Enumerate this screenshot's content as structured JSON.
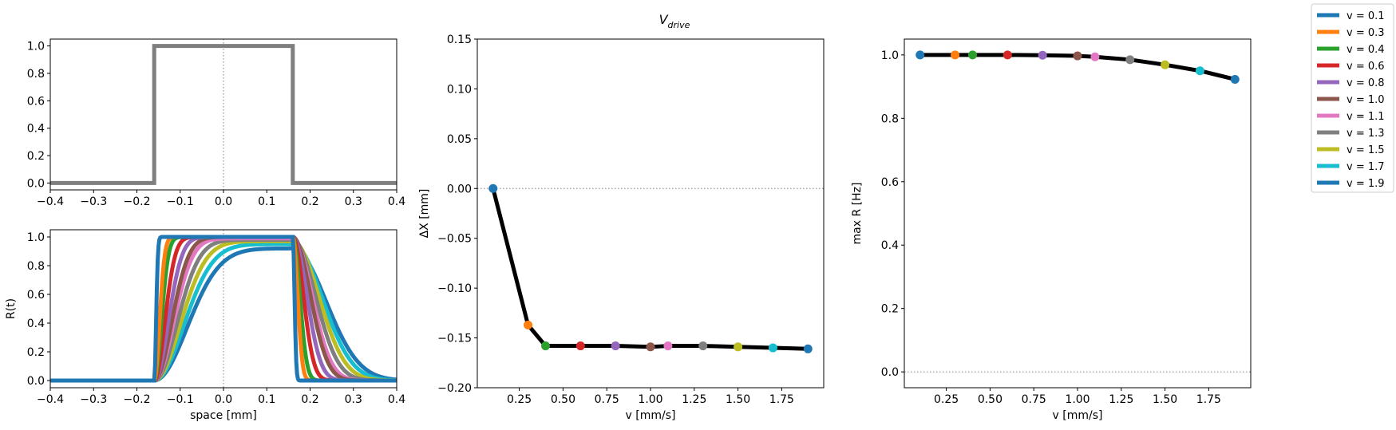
{
  "figure": {
    "suptitle_main": "V",
    "suptitle_sub": "drive"
  },
  "chart_data": [
    {
      "id": "stimulus",
      "type": "line",
      "title": "",
      "xlabel": "",
      "ylabel": "",
      "xlim": [
        -0.4,
        0.4
      ],
      "ylim": [
        -0.05,
        1.05
      ],
      "xticks": [
        -0.4,
        -0.3,
        -0.2,
        -0.1,
        0.0,
        0.1,
        0.2,
        0.3,
        0.4
      ],
      "xtick_labels": [
        "−0.4",
        "−0.3",
        "−0.2",
        "−0.1",
        "0.0",
        "0.1",
        "0.2",
        "0.3",
        "0.4"
      ],
      "yticks": [
        0.0,
        0.2,
        0.4,
        0.6,
        0.8,
        1.0
      ],
      "ytick_labels": [
        "0.0",
        "0.2",
        "0.4",
        "0.6",
        "0.8",
        "1.0"
      ],
      "reference_lines": [
        {
          "orientation": "vertical",
          "value": 0.0,
          "style": "dotted"
        }
      ],
      "series": [
        {
          "color": "#7f7f7f",
          "x": [
            -0.4,
            -0.16,
            -0.16,
            0.16,
            0.16,
            0.4
          ],
          "y": [
            0,
            0,
            1,
            1,
            0,
            0
          ]
        }
      ]
    },
    {
      "id": "responses",
      "type": "line",
      "title": "",
      "xlabel": "space [mm]",
      "ylabel": "R(t)",
      "xlim": [
        -0.4,
        0.4
      ],
      "ylim": [
        -0.05,
        1.05
      ],
      "xticks": [
        -0.4,
        -0.3,
        -0.2,
        -0.1,
        0.0,
        0.1,
        0.2,
        0.3,
        0.4
      ],
      "xtick_labels": [
        "−0.4",
        "−0.3",
        "−0.2",
        "−0.1",
        "0.0",
        "0.1",
        "0.2",
        "0.3",
        "0.4"
      ],
      "yticks": [
        0.0,
        0.2,
        0.4,
        0.6,
        0.8,
        1.0
      ],
      "ytick_labels": [
        "0.0",
        "0.2",
        "0.4",
        "0.6",
        "0.8",
        "1.0"
      ],
      "reference_lines": [
        {
          "orientation": "vertical",
          "value": 0.0,
          "style": "dotted"
        }
      ],
      "series": [
        {
          "v": 0.1,
          "color": "#1f77b4",
          "rise_tau": 0.006,
          "peak": 1.0,
          "decay_tau": 0.004
        },
        {
          "v": 0.3,
          "color": "#ff7f0e",
          "rise_tau": 0.017,
          "peak": 1.0,
          "decay_tau": 0.011
        },
        {
          "v": 0.4,
          "color": "#2ca02c",
          "rise_tau": 0.023,
          "peak": 1.0,
          "decay_tau": 0.016
        },
        {
          "v": 0.6,
          "color": "#d62728",
          "rise_tau": 0.034,
          "peak": 1.0,
          "decay_tau": 0.024
        },
        {
          "v": 0.8,
          "color": "#9467bd",
          "rise_tau": 0.045,
          "peak": 1.0,
          "decay_tau": 0.032
        },
        {
          "v": 1.0,
          "color": "#8c564b",
          "rise_tau": 0.056,
          "peak": 1.0,
          "decay_tau": 0.04
        },
        {
          "v": 1.1,
          "color": "#e377c2",
          "rise_tau": 0.062,
          "peak": 0.99,
          "decay_tau": 0.044
        },
        {
          "v": 1.3,
          "color": "#7f7f7f",
          "rise_tau": 0.073,
          "peak": 0.98,
          "decay_tau": 0.052
        },
        {
          "v": 1.5,
          "color": "#bcbd22",
          "rise_tau": 0.084,
          "peak": 0.97,
          "decay_tau": 0.06
        },
        {
          "v": 1.7,
          "color": "#17becf",
          "rise_tau": 0.095,
          "peak": 0.95,
          "decay_tau": 0.068
        },
        {
          "v": 1.9,
          "color": "#1f77b4",
          "rise_tau": 0.106,
          "peak": 0.92,
          "decay_tau": 0.076
        }
      ]
    },
    {
      "id": "delta-x",
      "type": "line",
      "title": "",
      "xlabel": "v [mm/s]",
      "ylabel": "ΔX [mm]",
      "xlim": [
        0.01,
        1.99
      ],
      "ylim": [
        -0.2,
        0.15
      ],
      "xticks": [
        0.25,
        0.5,
        0.75,
        1.0,
        1.25,
        1.5,
        1.75
      ],
      "xtick_labels": [
        "0.25",
        "0.50",
        "0.75",
        "1.00",
        "1.25",
        "1.50",
        "1.75"
      ],
      "yticks": [
        -0.2,
        -0.15,
        -0.1,
        -0.05,
        0.0,
        0.05,
        0.1,
        0.15
      ],
      "ytick_labels": [
        "−0.20",
        "−0.15",
        "−0.10",
        "−0.05",
        "0.00",
        "0.05",
        "0.10",
        "0.15"
      ],
      "reference_lines": [
        {
          "orientation": "horizontal",
          "value": 0.0,
          "style": "dotted"
        }
      ],
      "x": [
        0.1,
        0.3,
        0.4,
        0.6,
        0.8,
        1.0,
        1.1,
        1.3,
        1.5,
        1.7,
        1.9
      ],
      "y": [
        0.0,
        -0.137,
        -0.158,
        -0.158,
        -0.158,
        -0.159,
        -0.158,
        -0.158,
        -0.159,
        -0.16,
        -0.161
      ],
      "line_color": "#000000",
      "marker_colors": [
        "#1f77b4",
        "#ff7f0e",
        "#2ca02c",
        "#d62728",
        "#9467bd",
        "#8c564b",
        "#e377c2",
        "#7f7f7f",
        "#bcbd22",
        "#17becf",
        "#1f77b4"
      ]
    },
    {
      "id": "max-r",
      "type": "line",
      "title": "",
      "xlabel": "v [mm/s]",
      "ylabel": "max R [Hz]",
      "xlim": [
        0.01,
        1.99
      ],
      "ylim": [
        -0.05,
        1.05
      ],
      "xticks": [
        0.25,
        0.5,
        0.75,
        1.0,
        1.25,
        1.5,
        1.75
      ],
      "xtick_labels": [
        "0.25",
        "0.50",
        "0.75",
        "1.00",
        "1.25",
        "1.50",
        "1.75"
      ],
      "yticks": [
        0.0,
        0.2,
        0.4,
        0.6,
        0.8,
        1.0
      ],
      "ytick_labels": [
        "0.0",
        "0.2",
        "0.4",
        "0.6",
        "0.8",
        "1.0"
      ],
      "reference_lines": [
        {
          "orientation": "horizontal",
          "value": 0.0,
          "style": "dotted"
        }
      ],
      "x": [
        0.1,
        0.3,
        0.4,
        0.6,
        0.8,
        1.0,
        1.1,
        1.3,
        1.5,
        1.7,
        1.9
      ],
      "y": [
        1.0,
        1.0,
        1.0,
        1.0,
        0.999,
        0.997,
        0.994,
        0.985,
        0.969,
        0.95,
        0.923
      ],
      "line_color": "#000000",
      "marker_colors": [
        "#1f77b4",
        "#ff7f0e",
        "#2ca02c",
        "#d62728",
        "#9467bd",
        "#8c564b",
        "#e377c2",
        "#7f7f7f",
        "#bcbd22",
        "#17becf",
        "#1f77b4"
      ]
    }
  ],
  "legend": {
    "placement": "top-right",
    "entries": [
      {
        "label": "v = 0.1",
        "color": "#1f77b4"
      },
      {
        "label": "v = 0.3",
        "color": "#ff7f0e"
      },
      {
        "label": "v = 0.4",
        "color": "#2ca02c"
      },
      {
        "label": "v = 0.6",
        "color": "#d62728"
      },
      {
        "label": "v = 0.8",
        "color": "#9467bd"
      },
      {
        "label": "v = 1.0",
        "color": "#8c564b"
      },
      {
        "label": "v = 1.1",
        "color": "#e377c2"
      },
      {
        "label": "v = 1.3",
        "color": "#7f7f7f"
      },
      {
        "label": "v = 1.5",
        "color": "#bcbd22"
      },
      {
        "label": "v = 1.7",
        "color": "#17becf"
      },
      {
        "label": "v = 1.9",
        "color": "#1f77b4"
      }
    ]
  }
}
